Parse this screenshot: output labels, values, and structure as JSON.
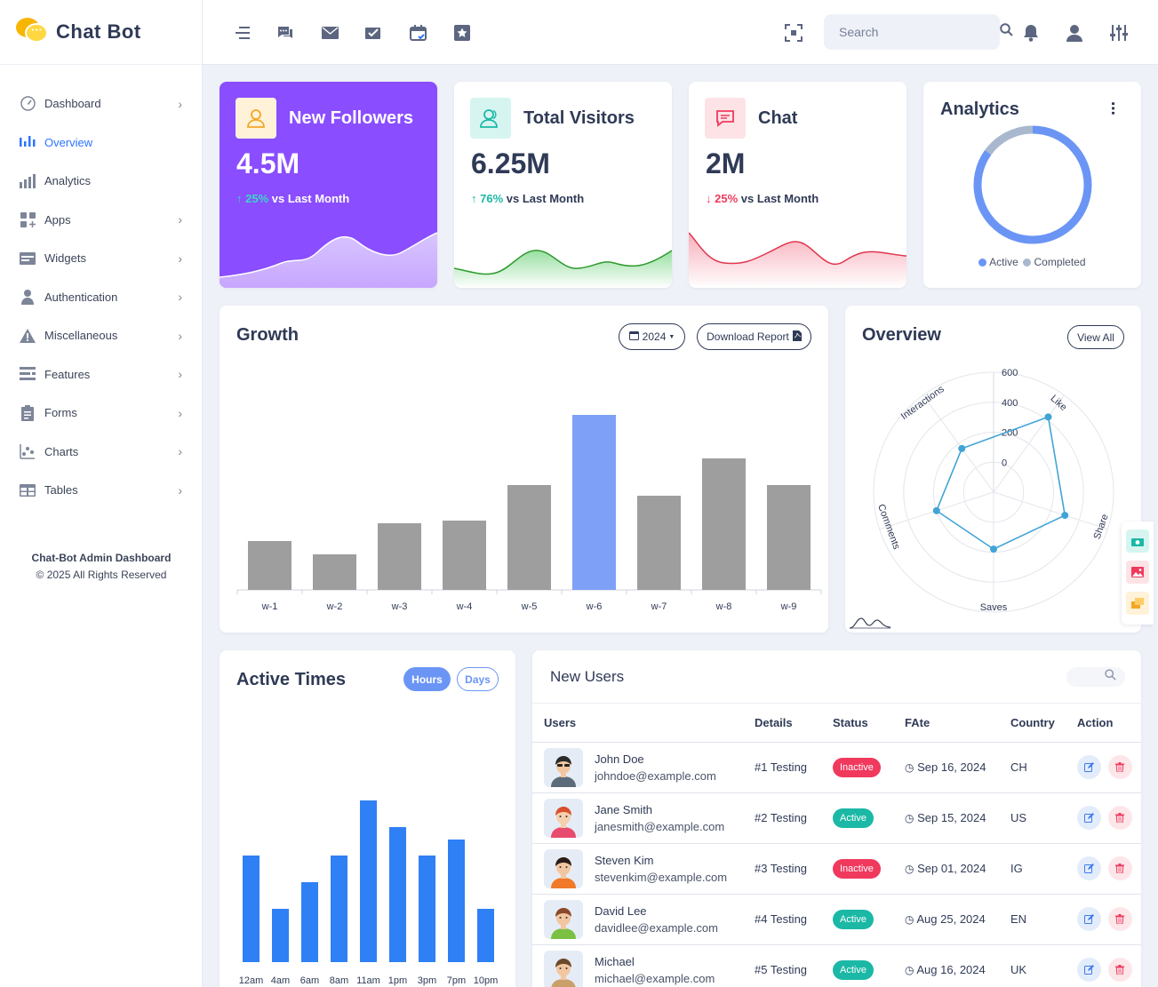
{
  "brand": {
    "name": "Chat Bot"
  },
  "sidebar": {
    "items": [
      {
        "label": "Dashboard",
        "icon": "dashboard-icon",
        "chevron": true,
        "active": false
      },
      {
        "label": "Overview",
        "icon": "overview-icon",
        "chevron": false,
        "active": true
      },
      {
        "label": "Analytics",
        "icon": "analytics-icon",
        "chevron": false,
        "active": false
      },
      {
        "label": "Apps",
        "icon": "apps-icon",
        "chevron": true,
        "active": false
      },
      {
        "label": "Widgets",
        "icon": "widgets-icon",
        "chevron": true,
        "active": false
      },
      {
        "label": "Authentication",
        "icon": "authentication-icon",
        "chevron": true,
        "active": false
      },
      {
        "label": "Miscellaneous",
        "icon": "miscellaneous-icon",
        "chevron": true,
        "active": false
      },
      {
        "label": "Features",
        "icon": "features-icon",
        "chevron": true,
        "active": false
      },
      {
        "label": "Forms",
        "icon": "forms-icon",
        "chevron": true,
        "active": false
      },
      {
        "label": "Charts",
        "icon": "charts-icon",
        "chevron": true,
        "active": false
      },
      {
        "label": "Tables",
        "icon": "tables-icon",
        "chevron": true,
        "active": false
      }
    ],
    "footer_title": "Chat-Bot Admin Dashboard",
    "footer_copyright": "© 2025 All Rights Reserved"
  },
  "topbar": {
    "search_placeholder": "Search"
  },
  "stats": [
    {
      "title": "New Followers",
      "value": "4.5M",
      "change": "25%",
      "suffix": "vs Last Month",
      "direction": "up"
    },
    {
      "title": "Total Visitors",
      "value": "6.25M",
      "change": "76%",
      "suffix": "vs Last Month",
      "direction": "up"
    },
    {
      "title": "Chat",
      "value": "2M",
      "change": "25%",
      "suffix": "vs Last Month",
      "direction": "down"
    }
  ],
  "analytics": {
    "title": "Analytics",
    "legend": [
      "Active",
      "Completed"
    ],
    "colors": {
      "active": "#6b95f5",
      "completed": "#a9b8cf"
    }
  },
  "growth": {
    "title": "Growth",
    "year_button": "2024",
    "download_button": "Download Report"
  },
  "overview": {
    "title": "Overview",
    "view_all": "View All"
  },
  "active_times": {
    "title": "Active Times",
    "toggle": [
      "Hours",
      "Days"
    ]
  },
  "new_users": {
    "title": "New Users",
    "columns": [
      "Users",
      "Details",
      "Status",
      "FAte",
      "Country",
      "Action"
    ],
    "rows": [
      {
        "name": "John Doe",
        "email": "johndoe@example.com",
        "details": "#1 Testing",
        "status": "Inactive",
        "date": "Sep 16, 2024",
        "country": "CH"
      },
      {
        "name": "Jane Smith",
        "email": "janesmith@example.com",
        "details": "#2 Testing",
        "status": "Active",
        "date": "Sep 15, 2024",
        "country": "US"
      },
      {
        "name": "Steven Kim",
        "email": "stevenkim@example.com",
        "details": "#3 Testing",
        "status": "Inactive",
        "date": "Sep 01, 2024",
        "country": "IG"
      },
      {
        "name": "David Lee",
        "email": "davidlee@example.com",
        "details": "#4 Testing",
        "status": "Active",
        "date": "Aug 25, 2024",
        "country": "EN"
      },
      {
        "name": "Michael",
        "email": "michael@example.com",
        "details": "#5 Testing",
        "status": "Active",
        "date": "Aug 16, 2024",
        "country": "UK"
      }
    ]
  },
  "chart_data": [
    {
      "type": "bar",
      "categories": [
        "w-1",
        "w-2",
        "w-3",
        "w-4",
        "w-5",
        "w-6",
        "w-7",
        "w-8",
        "w-9"
      ],
      "values": [
        55,
        40,
        75,
        78,
        118,
        197,
        106,
        148,
        118
      ],
      "highlight_index": 5,
      "colors": {
        "bar": "#9e9e9e",
        "highlight": "#7ea1f7"
      }
    },
    {
      "type": "radar",
      "axes": [
        "Like",
        "Share",
        "Saves",
        "Comments",
        "Interactions"
      ],
      "values": [
        420,
        300,
        180,
        200,
        160
      ],
      "ticks": [
        0,
        200,
        400,
        600
      ],
      "range": [
        -200,
        600
      ],
      "color": "#41a4d6"
    },
    {
      "type": "bar",
      "categories": [
        "12am",
        "4am",
        "6am",
        "8am",
        "11am",
        "1pm",
        "3pm",
        "7pm",
        "10pm"
      ],
      "values": [
        60,
        30,
        45,
        60,
        91,
        76,
        60,
        69,
        30
      ],
      "color": "#2f80f5"
    },
    {
      "type": "pie",
      "labels": [
        "Active",
        "Completed"
      ],
      "values": [
        85,
        15
      ]
    }
  ]
}
